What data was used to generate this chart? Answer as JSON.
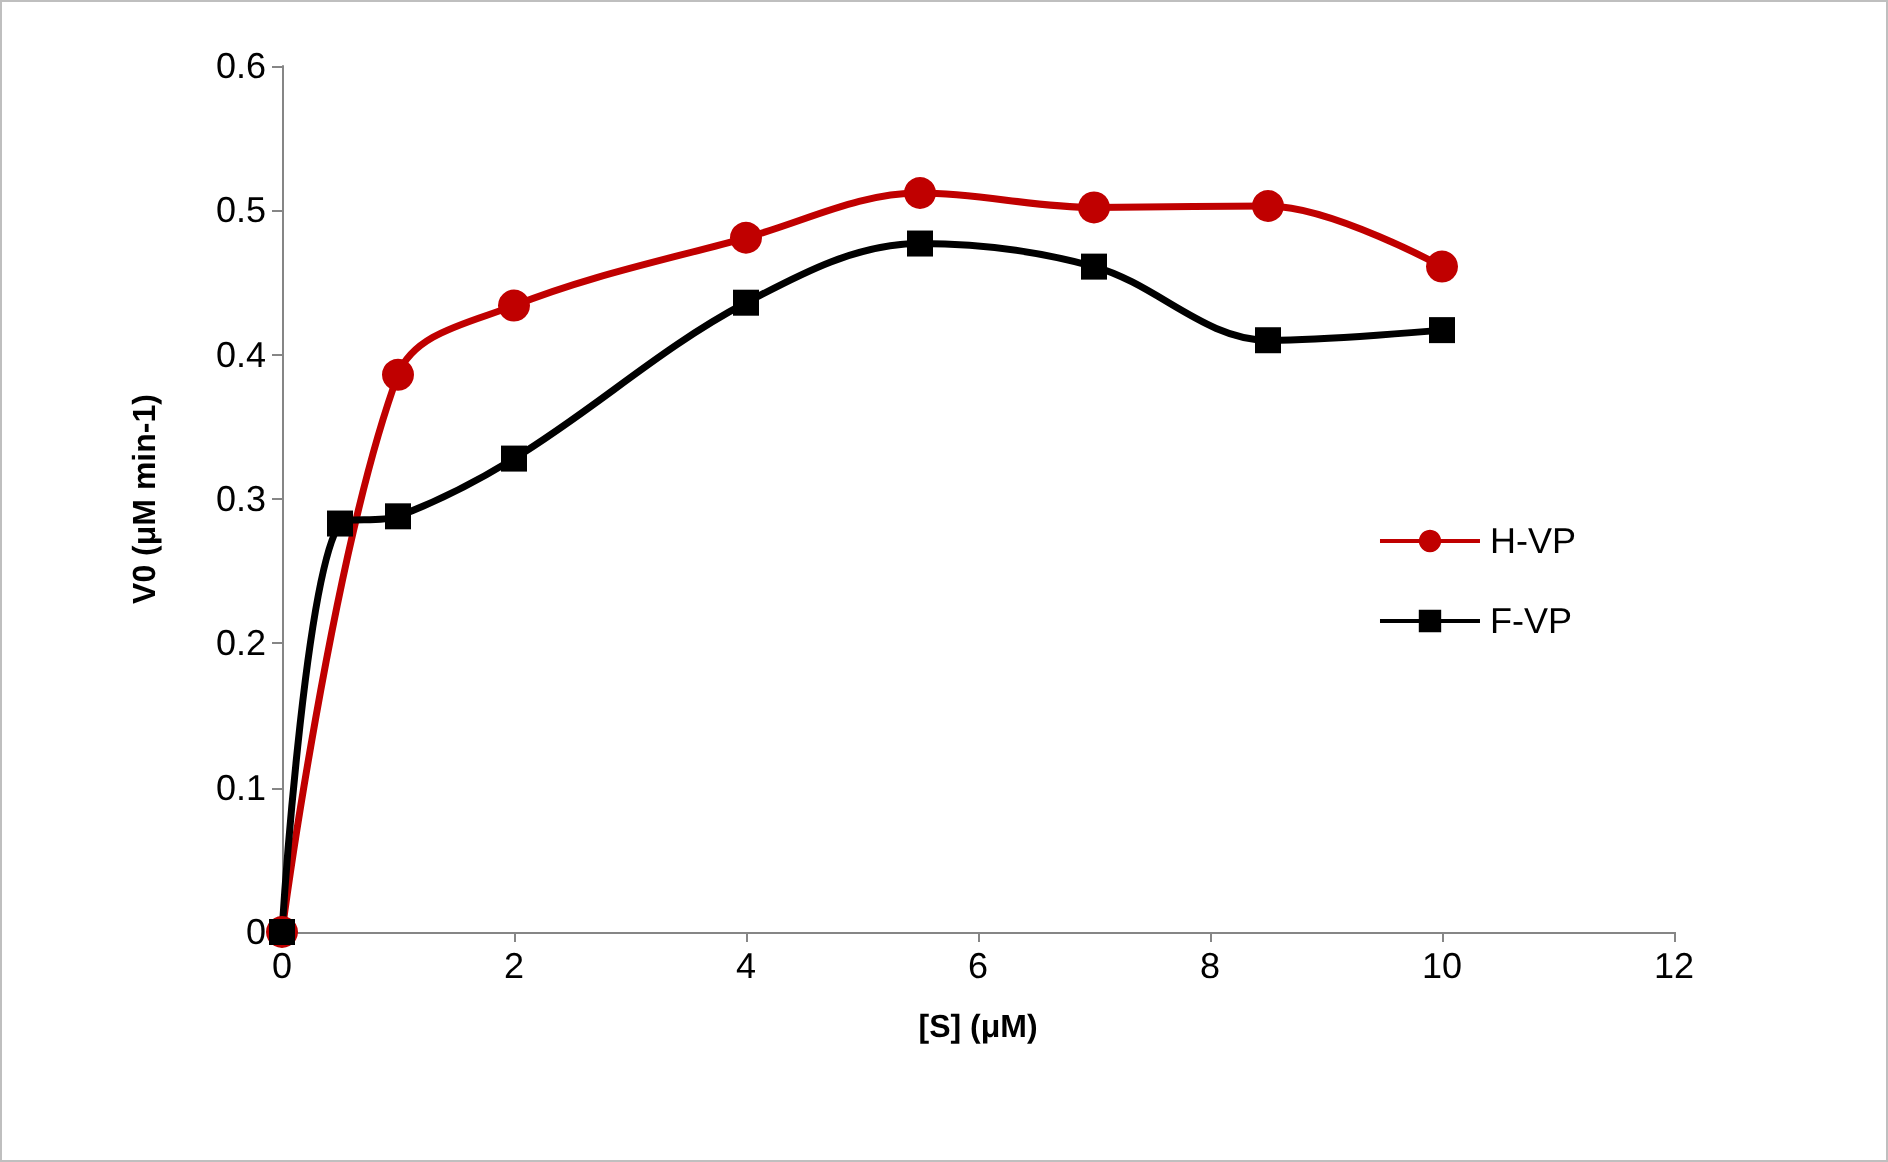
{
  "chart_data": {
    "type": "line",
    "xlabel": "[S] (μM)",
    "ylabel": "V0 (μM min-1)",
    "xlim": [
      0,
      12
    ],
    "xticks": [
      0,
      2,
      4,
      6,
      8,
      10,
      12
    ],
    "ylim": [
      0,
      0.6
    ],
    "yticks": [
      0,
      0.1,
      0.2,
      0.3,
      0.4,
      0.5,
      0.6
    ],
    "grid": false,
    "legend": "right",
    "series": [
      {
        "name": "H-VP",
        "color": "#c00000",
        "marker": "circle",
        "x": [
          0,
          1,
          2,
          4,
          5.5,
          7,
          8.5,
          10
        ],
        "values": [
          0,
          0.386,
          0.434,
          0.481,
          0.512,
          0.502,
          0.503,
          0.461
        ]
      },
      {
        "name": "F-VP",
        "color": "#000000",
        "marker": "square",
        "x": [
          0,
          0.5,
          1,
          2,
          4,
          5.5,
          7,
          8.5,
          10
        ],
        "values": [
          0,
          0.283,
          0.288,
          0.328,
          0.436,
          0.477,
          0.461,
          0.41,
          0.417
        ]
      }
    ]
  }
}
